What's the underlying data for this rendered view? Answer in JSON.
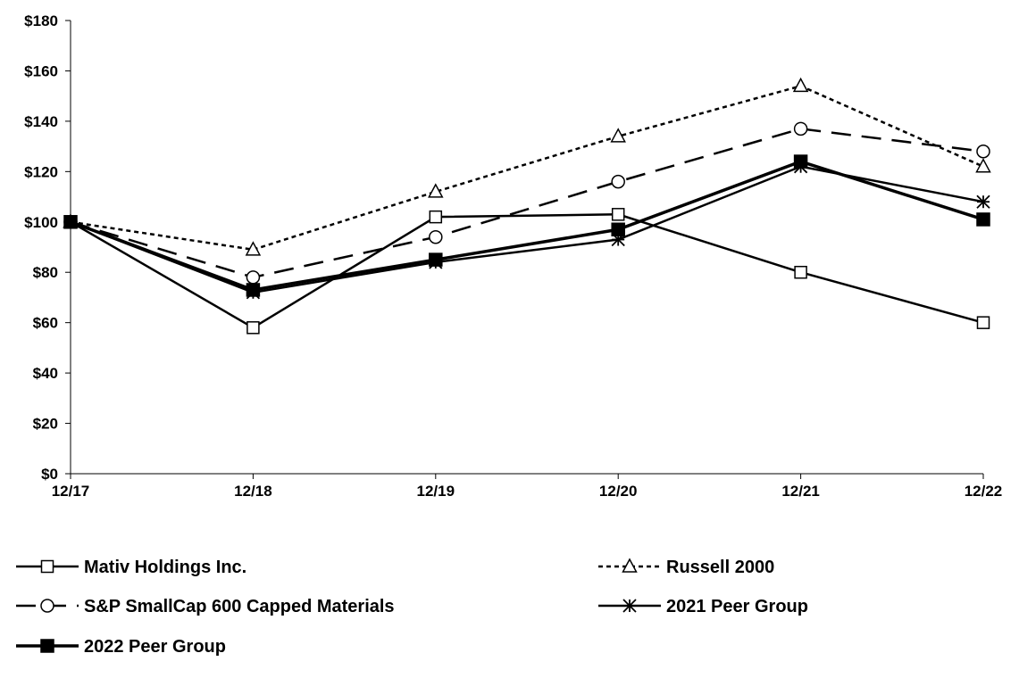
{
  "chart_data": {
    "type": "line",
    "title": "",
    "xlabel": "",
    "ylabel": "",
    "categories": [
      "12/17",
      "12/18",
      "12/19",
      "12/20",
      "12/21",
      "12/22"
    ],
    "ylim": [
      0,
      180
    ],
    "yticks": [
      "$0",
      "$20",
      "$40",
      "$60",
      "$80",
      "$100",
      "$120",
      "$140",
      "$160",
      "$180"
    ],
    "grid": false,
    "legend_position": "bottom",
    "series": [
      {
        "name": "Mativ Holdings Inc.",
        "values": [
          100,
          58,
          102,
          103,
          80,
          60
        ],
        "marker": "open-square",
        "dash": "solid",
        "color": "#000000"
      },
      {
        "name": "Russell 2000",
        "values": [
          100,
          89,
          112,
          134,
          154,
          122
        ],
        "marker": "open-triangle",
        "dash": "dotted",
        "color": "#000000"
      },
      {
        "name": "S&P SmallCap 600 Capped Materials",
        "values": [
          100,
          78,
          94,
          116,
          137,
          128
        ],
        "marker": "open-circle",
        "dash": "long-dash",
        "color": "#000000"
      },
      {
        "name": "2021 Peer Group",
        "values": [
          100,
          72,
          84,
          93,
          122,
          108
        ],
        "marker": "asterisk",
        "dash": "solid",
        "color": "#000000"
      },
      {
        "name": "2022 Peer Group",
        "values": [
          100,
          73,
          85,
          97,
          124,
          101
        ],
        "marker": "filled-square",
        "dash": "solid",
        "color": "#000000"
      }
    ]
  }
}
